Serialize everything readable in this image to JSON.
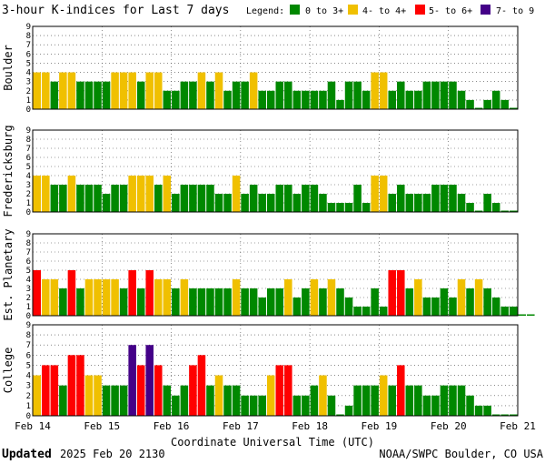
{
  "chart_data": {
    "type": "bar",
    "title": "3-hour K-indices for Last 7 days",
    "legend": {
      "label": "Legend:",
      "entries": [
        {
          "label": "0 to 3+",
          "color": "#008800"
        },
        {
          "label": "4- to 4+",
          "color": "#f0c000"
        },
        {
          "label": "5- to 6+",
          "color": "#ff0000"
        },
        {
          "label": "7- to 9",
          "color": "#440088"
        }
      ]
    },
    "xlabel": "Coordinate Universal Time (UTC)",
    "x_ticks": [
      "Feb 14",
      "Feb 15",
      "Feb 16",
      "Feb 17",
      "Feb 18",
      "Feb 19",
      "Feb 20",
      "Feb 21"
    ],
    "ylim": [
      0,
      9
    ],
    "y_ticks": [
      "0",
      "1",
      "2",
      "3",
      "4",
      "5",
      "6",
      "7",
      "8",
      "9"
    ],
    "panels": [
      {
        "name": "Boulder",
        "values": [
          4,
          4,
          3,
          4,
          4,
          3,
          3,
          3,
          3,
          4,
          4,
          4,
          3,
          4,
          4,
          2,
          2,
          3,
          3,
          4,
          3,
          4,
          2,
          3,
          3,
          4,
          2,
          2,
          3,
          3,
          2,
          2,
          2,
          2,
          3,
          1,
          3,
          3,
          2,
          4,
          4,
          2,
          3,
          2,
          2,
          3,
          3,
          3,
          3,
          2,
          1,
          0,
          1,
          2,
          1,
          0
        ]
      },
      {
        "name": "Fredericksburg",
        "values": [
          4,
          4,
          3,
          3,
          4,
          3,
          3,
          3,
          2,
          3,
          3,
          4,
          4,
          4,
          3,
          4,
          2,
          3,
          3,
          3,
          3,
          2,
          2,
          4,
          2,
          3,
          2,
          2,
          3,
          3,
          2,
          3,
          3,
          2,
          1,
          1,
          1,
          3,
          1,
          4,
          4,
          2,
          3,
          2,
          2,
          2,
          3,
          3,
          3,
          2,
          1,
          0,
          2,
          1,
          0,
          0
        ]
      },
      {
        "name": "Est. Planetary",
        "values": [
          5,
          4,
          4,
          3,
          5,
          3,
          4,
          4,
          4,
          4,
          3,
          5,
          3,
          5,
          4,
          4,
          3,
          4,
          3,
          3,
          3,
          3,
          3,
          4,
          3,
          3,
          2,
          3,
          3,
          4,
          2,
          3,
          4,
          3,
          4,
          3,
          2,
          1,
          1,
          3,
          1,
          5,
          5,
          3,
          4,
          2,
          2,
          3,
          2,
          4,
          3,
          4,
          3,
          2,
          1,
          1,
          0,
          0
        ]
      },
      {
        "name": "College",
        "values": [
          4,
          5,
          5,
          3,
          6,
          6,
          4,
          4,
          3,
          3,
          3,
          7,
          5,
          7,
          5,
          3,
          2,
          3,
          5,
          6,
          3,
          4,
          3,
          3,
          2,
          2,
          2,
          4,
          5,
          5,
          2,
          2,
          3,
          4,
          2,
          0,
          1,
          3,
          3,
          3,
          4,
          3,
          5,
          3,
          3,
          2,
          2,
          3,
          3,
          3,
          2,
          1,
          1,
          0,
          0,
          0
        ]
      }
    ]
  },
  "footer": {
    "updated_label": "Updated",
    "updated_value": "2025 Feb 20 2130",
    "source": "NOAA/SWPC Boulder, CO USA"
  }
}
